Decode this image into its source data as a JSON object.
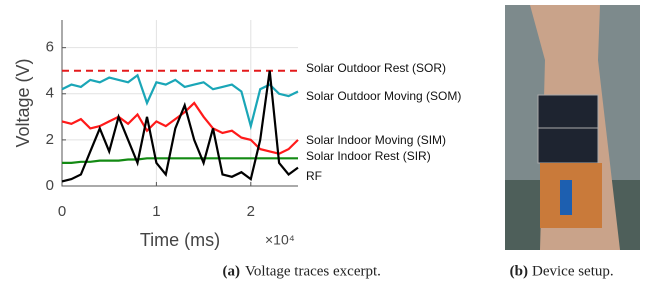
{
  "chart_data": {
    "type": "line",
    "ylabel": "Voltage (V)",
    "xlabel": "Time (ms)",
    "x_multiplier": "×10⁴",
    "x": [
      0,
      0.1,
      0.2,
      0.3,
      0.4,
      0.5,
      0.6,
      0.7,
      0.8,
      0.9,
      1.0,
      1.1,
      1.2,
      1.3,
      1.4,
      1.5,
      1.6,
      1.7,
      1.8,
      1.9,
      2.0,
      2.1,
      2.2,
      2.3,
      2.4,
      2.5
    ],
    "xlim": [
      0,
      2.5
    ],
    "xticks": [
      0,
      1,
      2
    ],
    "ylim": [
      0,
      7.2
    ],
    "yticks": [
      0,
      2,
      4,
      6
    ],
    "grid": true,
    "series": [
      {
        "name": "Solar Outdoor Rest (SOR)",
        "color": "#e41a1c",
        "dashed": true,
        "values": [
          5,
          5,
          5,
          5,
          5,
          5,
          5,
          5,
          5,
          5,
          5,
          5,
          5,
          5,
          5,
          5,
          5,
          5,
          5,
          5,
          5,
          5,
          5,
          5,
          5,
          5
        ]
      },
      {
        "name": "Solar Outdoor Moving (SOM)",
        "color": "#1aa6b7",
        "values": [
          4.2,
          4.4,
          4.3,
          4.6,
          4.5,
          4.7,
          4.6,
          4.5,
          4.8,
          3.6,
          4.5,
          4.4,
          4.6,
          4.3,
          4.4,
          4.5,
          4.2,
          4.3,
          4.4,
          4.1,
          2.6,
          4.2,
          4.4,
          4.0,
          3.9,
          4.1
        ]
      },
      {
        "name": "Solar Indoor Moving (SIM)",
        "color": "#ff1a1a",
        "values": [
          2.8,
          2.7,
          2.9,
          2.5,
          2.6,
          2.8,
          3.0,
          2.7,
          3.1,
          2.4,
          2.8,
          2.6,
          2.9,
          3.2,
          3.6,
          3.0,
          2.5,
          2.3,
          2.4,
          2.1,
          2.0,
          1.6,
          1.5,
          1.4,
          1.6,
          2.0
        ]
      },
      {
        "name": "Solar Indoor Rest (SIR)",
        "color": "#138a13",
        "values": [
          1.0,
          1.0,
          1.05,
          1.05,
          1.1,
          1.1,
          1.1,
          1.15,
          1.15,
          1.2,
          1.2,
          1.2,
          1.2,
          1.2,
          1.2,
          1.2,
          1.2,
          1.2,
          1.2,
          1.2,
          1.2,
          1.2,
          1.2,
          1.2,
          1.2,
          1.2
        ]
      },
      {
        "name": "RF",
        "color": "#000000",
        "values": [
          0.2,
          0.3,
          0.5,
          1.5,
          2.5,
          1.5,
          3.0,
          2.0,
          1.0,
          3.0,
          1.0,
          0.5,
          2.5,
          3.5,
          2.0,
          1.0,
          2.5,
          0.5,
          0.4,
          0.6,
          0.3,
          2.0,
          5.0,
          1.0,
          0.5,
          0.8
        ]
      }
    ]
  },
  "captions": {
    "a": {
      "label": "(a)",
      "text": "Voltage traces excerpt."
    },
    "b": {
      "label": "(b)",
      "text": "Device setup."
    }
  }
}
